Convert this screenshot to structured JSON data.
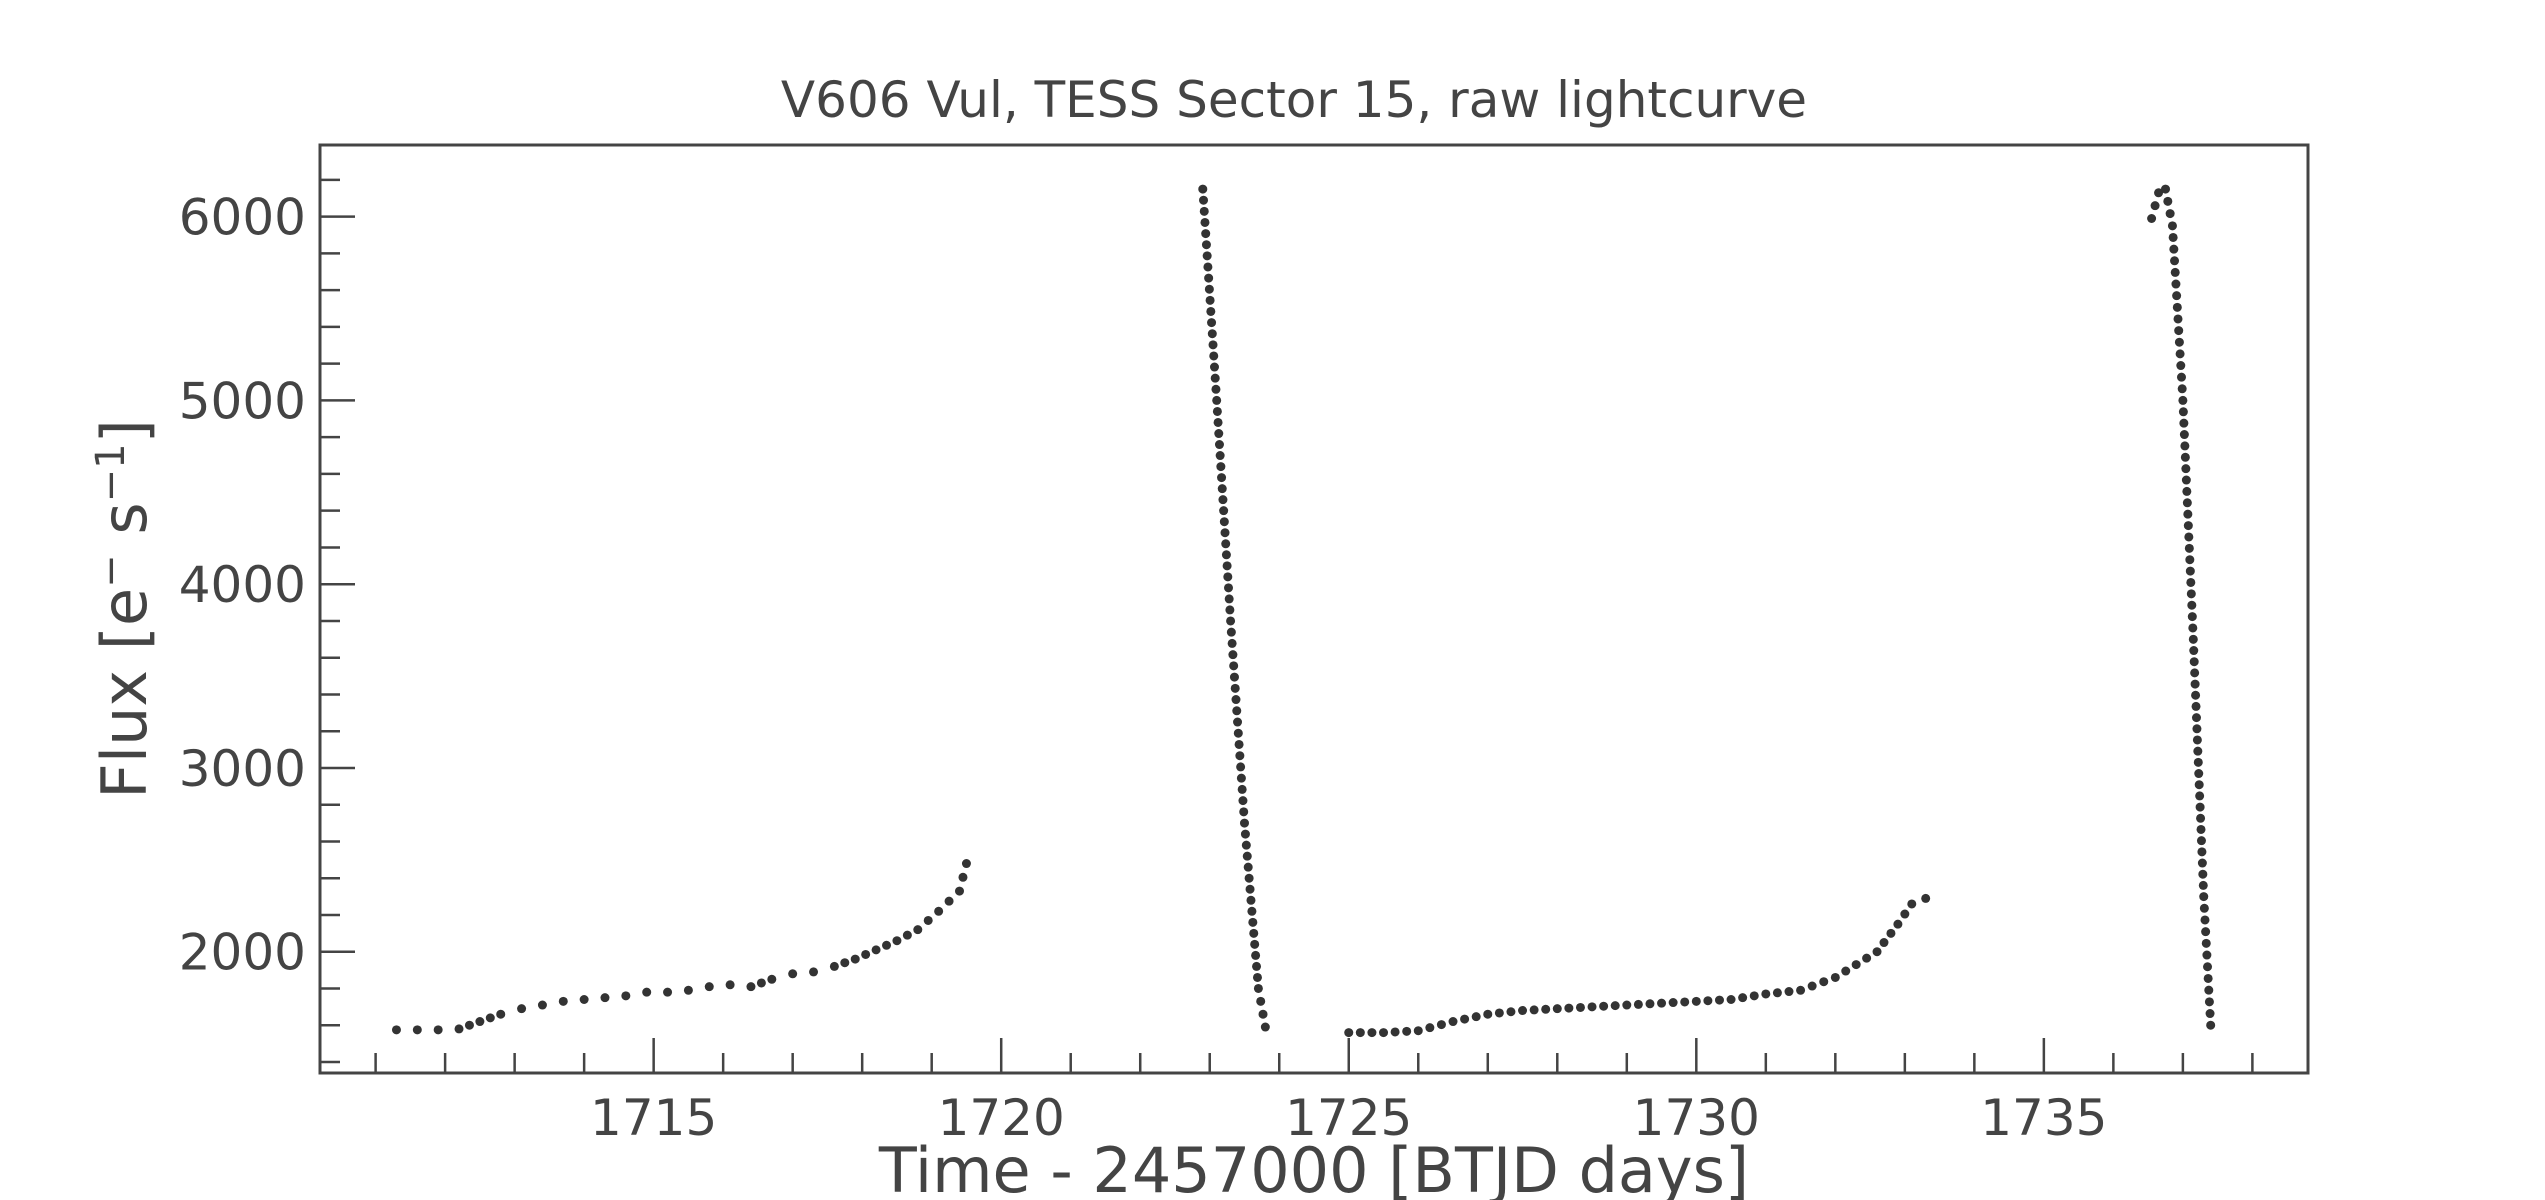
{
  "chart_data": {
    "type": "scatter",
    "title": "V606 Vul, TESS Sector 15, raw lightcurve",
    "xlabel": "Time - 2457000 [BTJD days]",
    "ylabel_main": "Flux [e",
    "ylabel_sup1": "−",
    "ylabel_mid": " s",
    "ylabel_sup2": "−1",
    "ylabel_end": "]",
    "xlim": [
      1710.2,
      1738.8
    ],
    "ylim": [
      1340,
      6390
    ],
    "x_ticks": [
      1715,
      1720,
      1725,
      1730,
      1735
    ],
    "x_tick_labels": [
      "1715",
      "1720",
      "1725",
      "1730",
      "1735"
    ],
    "x_minor_step": 1,
    "y_ticks": [
      2000,
      3000,
      4000,
      5000,
      6000
    ],
    "y_tick_labels": [
      "2000",
      "3000",
      "4000",
      "5000",
      "6000"
    ],
    "y_minor_step": 200,
    "point_color": "#333333",
    "grid": false,
    "series": [
      {
        "segments": [
          {
            "x": [
              1711.3,
              1711.6,
              1711.9,
              1712.2,
              1712.5,
              1712.8,
              1713.1,
              1713.4,
              1713.7,
              1714.0,
              1714.3,
              1714.6,
              1714.9,
              1715.2,
              1715.5,
              1715.8,
              1716.1,
              1716.4,
              1716.7,
              1717.0,
              1717.3,
              1717.6,
              1717.9,
              1718.2,
              1718.5,
              1718.8,
              1719.1,
              1719.4,
              1719.5
            ],
            "y": [
              1575,
              1575,
              1575,
              1580,
              1620,
              1660,
              1690,
              1710,
              1730,
              1740,
              1750,
              1760,
              1780,
              1780,
              1790,
              1810,
              1820,
              1810,
              1850,
              1880,
              1890,
              1920,
              1960,
              2010,
              2060,
              2120,
              2220,
              2330,
              2480
            ]
          },
          {
            "x": [
              1722.9,
              1723.1,
              1723.3,
              1723.5,
              1723.7,
              1723.8
            ],
            "y": [
              6150,
              5000,
              3800,
              2700,
              1800,
              1590
            ]
          },
          {
            "x": [
              1725.0,
              1725.5,
              1726.0,
              1726.5,
              1727.0,
              1727.5,
              1728.0,
              1728.5,
              1729.0,
              1729.5,
              1730.0,
              1730.5,
              1731.0,
              1731.5,
              1732.0,
              1732.3,
              1732.6,
              1732.9,
              1733.1,
              1733.3
            ],
            "y": [
              1560,
              1560,
              1570,
              1620,
              1660,
              1680,
              1690,
              1700,
              1710,
              1720,
              1730,
              1740,
              1770,
              1790,
              1860,
              1930,
              2000,
              2150,
              2260,
              2290
            ]
          },
          {
            "x": [
              1736.55,
              1736.65,
              1736.75,
              1736.85,
              1737.0,
              1737.15,
              1737.3,
              1737.4
            ],
            "y": [
              5990,
              6130,
              6150,
              5950,
              5000,
              3700,
              2300,
              1600
            ]
          }
        ]
      }
    ]
  }
}
